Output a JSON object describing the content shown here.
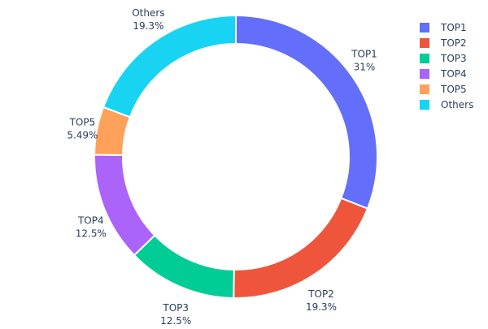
{
  "chart_data": {
    "type": "pie",
    "hole": true,
    "title": "",
    "labels": [
      "TOP1",
      "TOP2",
      "TOP3",
      "TOP4",
      "TOP5",
      "Others"
    ],
    "values": [
      31,
      19.3,
      12.5,
      12.5,
      5.49,
      19.3
    ],
    "value_labels": [
      "31%",
      "19.3%",
      "12.5%",
      "12.5%",
      "5.49%",
      "19.3%"
    ],
    "colors": [
      "#636efa",
      "#ef553b",
      "#00cc96",
      "#ab63fa",
      "#ffa15a",
      "#19d3f3"
    ],
    "legend_position": "top-right",
    "direction": "clockwise",
    "start": "12 o'clock"
  }
}
